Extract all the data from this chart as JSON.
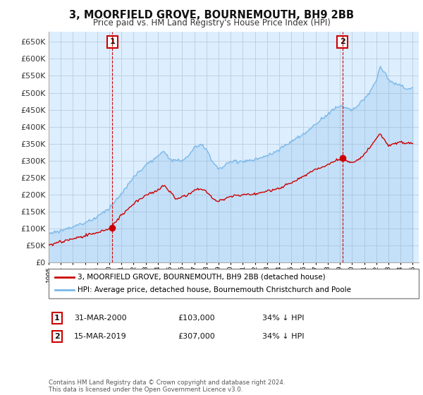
{
  "title": "3, MOORFIELD GROVE, BOURNEMOUTH, BH9 2BB",
  "subtitle": "Price paid vs. HM Land Registry's House Price Index (HPI)",
  "legend_line1": "3, MOORFIELD GROVE, BOURNEMOUTH, BH9 2BB (detached house)",
  "legend_line2": "HPI: Average price, detached house, Bournemouth Christchurch and Poole",
  "table_row1_num": "1",
  "table_row1_date": "31-MAR-2000",
  "table_row1_price": "£103,000",
  "table_row1_hpi": "34% ↓ HPI",
  "table_row2_num": "2",
  "table_row2_date": "15-MAR-2019",
  "table_row2_price": "£307,000",
  "table_row2_hpi": "34% ↓ HPI",
  "footnote": "Contains HM Land Registry data © Crown copyright and database right 2024.\nThis data is licensed under the Open Government Licence v3.0.",
  "ylim": [
    0,
    680000
  ],
  "yticks": [
    0,
    50000,
    100000,
    150000,
    200000,
    250000,
    300000,
    350000,
    400000,
    450000,
    500000,
    550000,
    600000,
    650000
  ],
  "hpi_color": "#7ab8e8",
  "hpi_fill_color": "#d6eaf8",
  "price_color": "#cc0000",
  "marker1_year": 2000.25,
  "marker1_value": 103000,
  "marker2_year": 2019.2,
  "marker2_value": 307000,
  "bg_color": "#ffffff",
  "plot_bg_color": "#ddeeff",
  "grid_color": "#bbccdd"
}
